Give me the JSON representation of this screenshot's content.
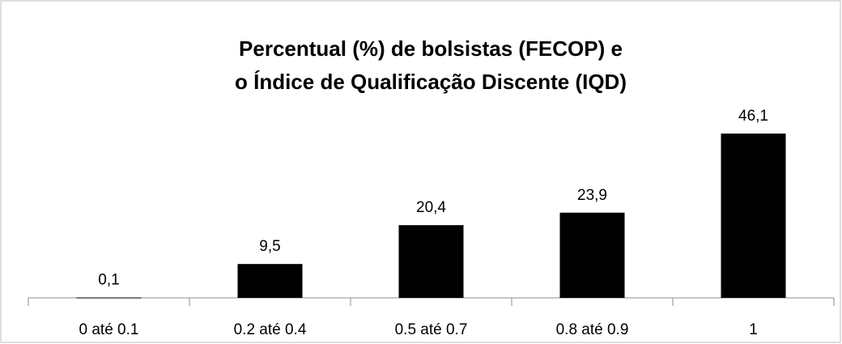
{
  "chart_data": {
    "type": "bar",
    "title": [
      "Percentual (%) de bolsistas (FECOP) e",
      "o Índice de Qualificação Discente (IQD)"
    ],
    "categories": [
      "0 até 0.1",
      "0.2 até 0.4",
      "0.5 até 0.7",
      "0.8 até 0.9",
      "1"
    ],
    "values": [
      0.1,
      9.5,
      20.4,
      23.9,
      46.1
    ],
    "value_labels": [
      "0,1",
      "9,5",
      "20,4",
      "23,9",
      "46,1"
    ],
    "color": "#000000"
  }
}
